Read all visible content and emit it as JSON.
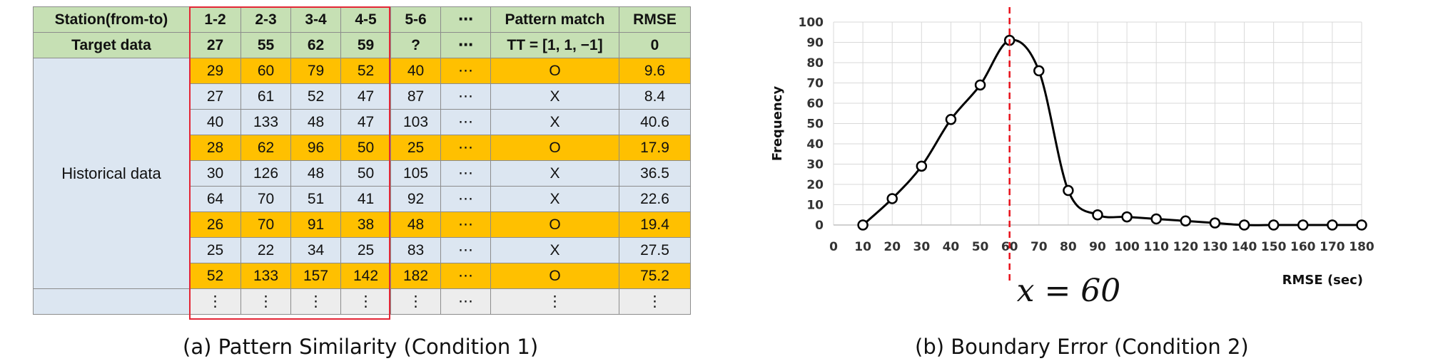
{
  "panel_a": {
    "caption": "(a) Pattern Similarity (Condition 1)",
    "table": {
      "header_row": [
        "Station(from-to)",
        "1-2",
        "2-3",
        "3-4",
        "4-5",
        "5-6",
        "⋯",
        "Pattern match",
        "RMSE"
      ],
      "target_row": [
        "Target data",
        "27",
        "55",
        "62",
        "59",
        "?",
        "⋯",
        "TT = [1, 1, −1]",
        "0"
      ],
      "historical_label": "Historical data",
      "rows": [
        {
          "cells": [
            "29",
            "60",
            "79",
            "52",
            "40",
            "⋯",
            "O",
            "9.6"
          ],
          "match": true
        },
        {
          "cells": [
            "27",
            "61",
            "52",
            "47",
            "87",
            "⋯",
            "X",
            "8.4"
          ],
          "match": false
        },
        {
          "cells": [
            "40",
            "133",
            "48",
            "47",
            "103",
            "⋯",
            "X",
            "40.6"
          ],
          "match": false
        },
        {
          "cells": [
            "28",
            "62",
            "96",
            "50",
            "25",
            "⋯",
            "O",
            "17.9"
          ],
          "match": true
        },
        {
          "cells": [
            "30",
            "126",
            "48",
            "50",
            "105",
            "⋯",
            "X",
            "36.5"
          ],
          "match": false
        },
        {
          "cells": [
            "64",
            "70",
            "51",
            "41",
            "92",
            "⋯",
            "X",
            "22.6"
          ],
          "match": false
        },
        {
          "cells": [
            "26",
            "70",
            "91",
            "38",
            "48",
            "⋯",
            "O",
            "19.4"
          ],
          "match": true
        },
        {
          "cells": [
            "25",
            "22",
            "34",
            "25",
            "83",
            "⋯",
            "X",
            "27.5"
          ],
          "match": false
        },
        {
          "cells": [
            "52",
            "133",
            "157",
            "142",
            "182",
            "⋯",
            "O",
            "75.2"
          ],
          "match": true
        },
        {
          "cells": [
            "⋮",
            "⋮",
            "⋮",
            "⋮",
            "⋮",
            "⋯",
            "⋮",
            "⋮"
          ],
          "match": false,
          "last": true
        }
      ]
    },
    "colors": {
      "header": "#c6e0b4",
      "match": "#ffc000",
      "normal": "#dce6f1",
      "highlight_box": "#e32636"
    }
  },
  "panel_b": {
    "caption": "(b) Boundary Error (Condition 2)",
    "annotation": "x = 60"
  },
  "chart_data": {
    "type": "line",
    "title": "",
    "xlabel": "RMSE (sec)",
    "ylabel": "Frequency",
    "x": [
      10,
      20,
      30,
      40,
      50,
      60,
      70,
      80,
      90,
      100,
      110,
      120,
      130,
      140,
      150,
      160,
      170,
      180
    ],
    "series": [
      {
        "values": [
          0,
          13,
          29,
          52,
          69,
          91,
          76,
          17,
          5,
          4,
          3,
          2,
          1,
          0,
          0,
          0,
          0,
          0
        ]
      }
    ],
    "xlim": [
      0,
      180
    ],
    "ylim": [
      0,
      100
    ],
    "xticks": [
      0,
      10,
      20,
      30,
      40,
      50,
      60,
      70,
      80,
      90,
      100,
      110,
      120,
      130,
      140,
      150,
      160,
      170,
      180
    ],
    "yticks": [
      0,
      10,
      20,
      30,
      40,
      50,
      60,
      70,
      80,
      90,
      100
    ],
    "grid": true,
    "reference_line": {
      "x": 60,
      "style": "dashed",
      "color": "#e8101a"
    },
    "line_color": "#000000",
    "marker": "open-circle"
  }
}
